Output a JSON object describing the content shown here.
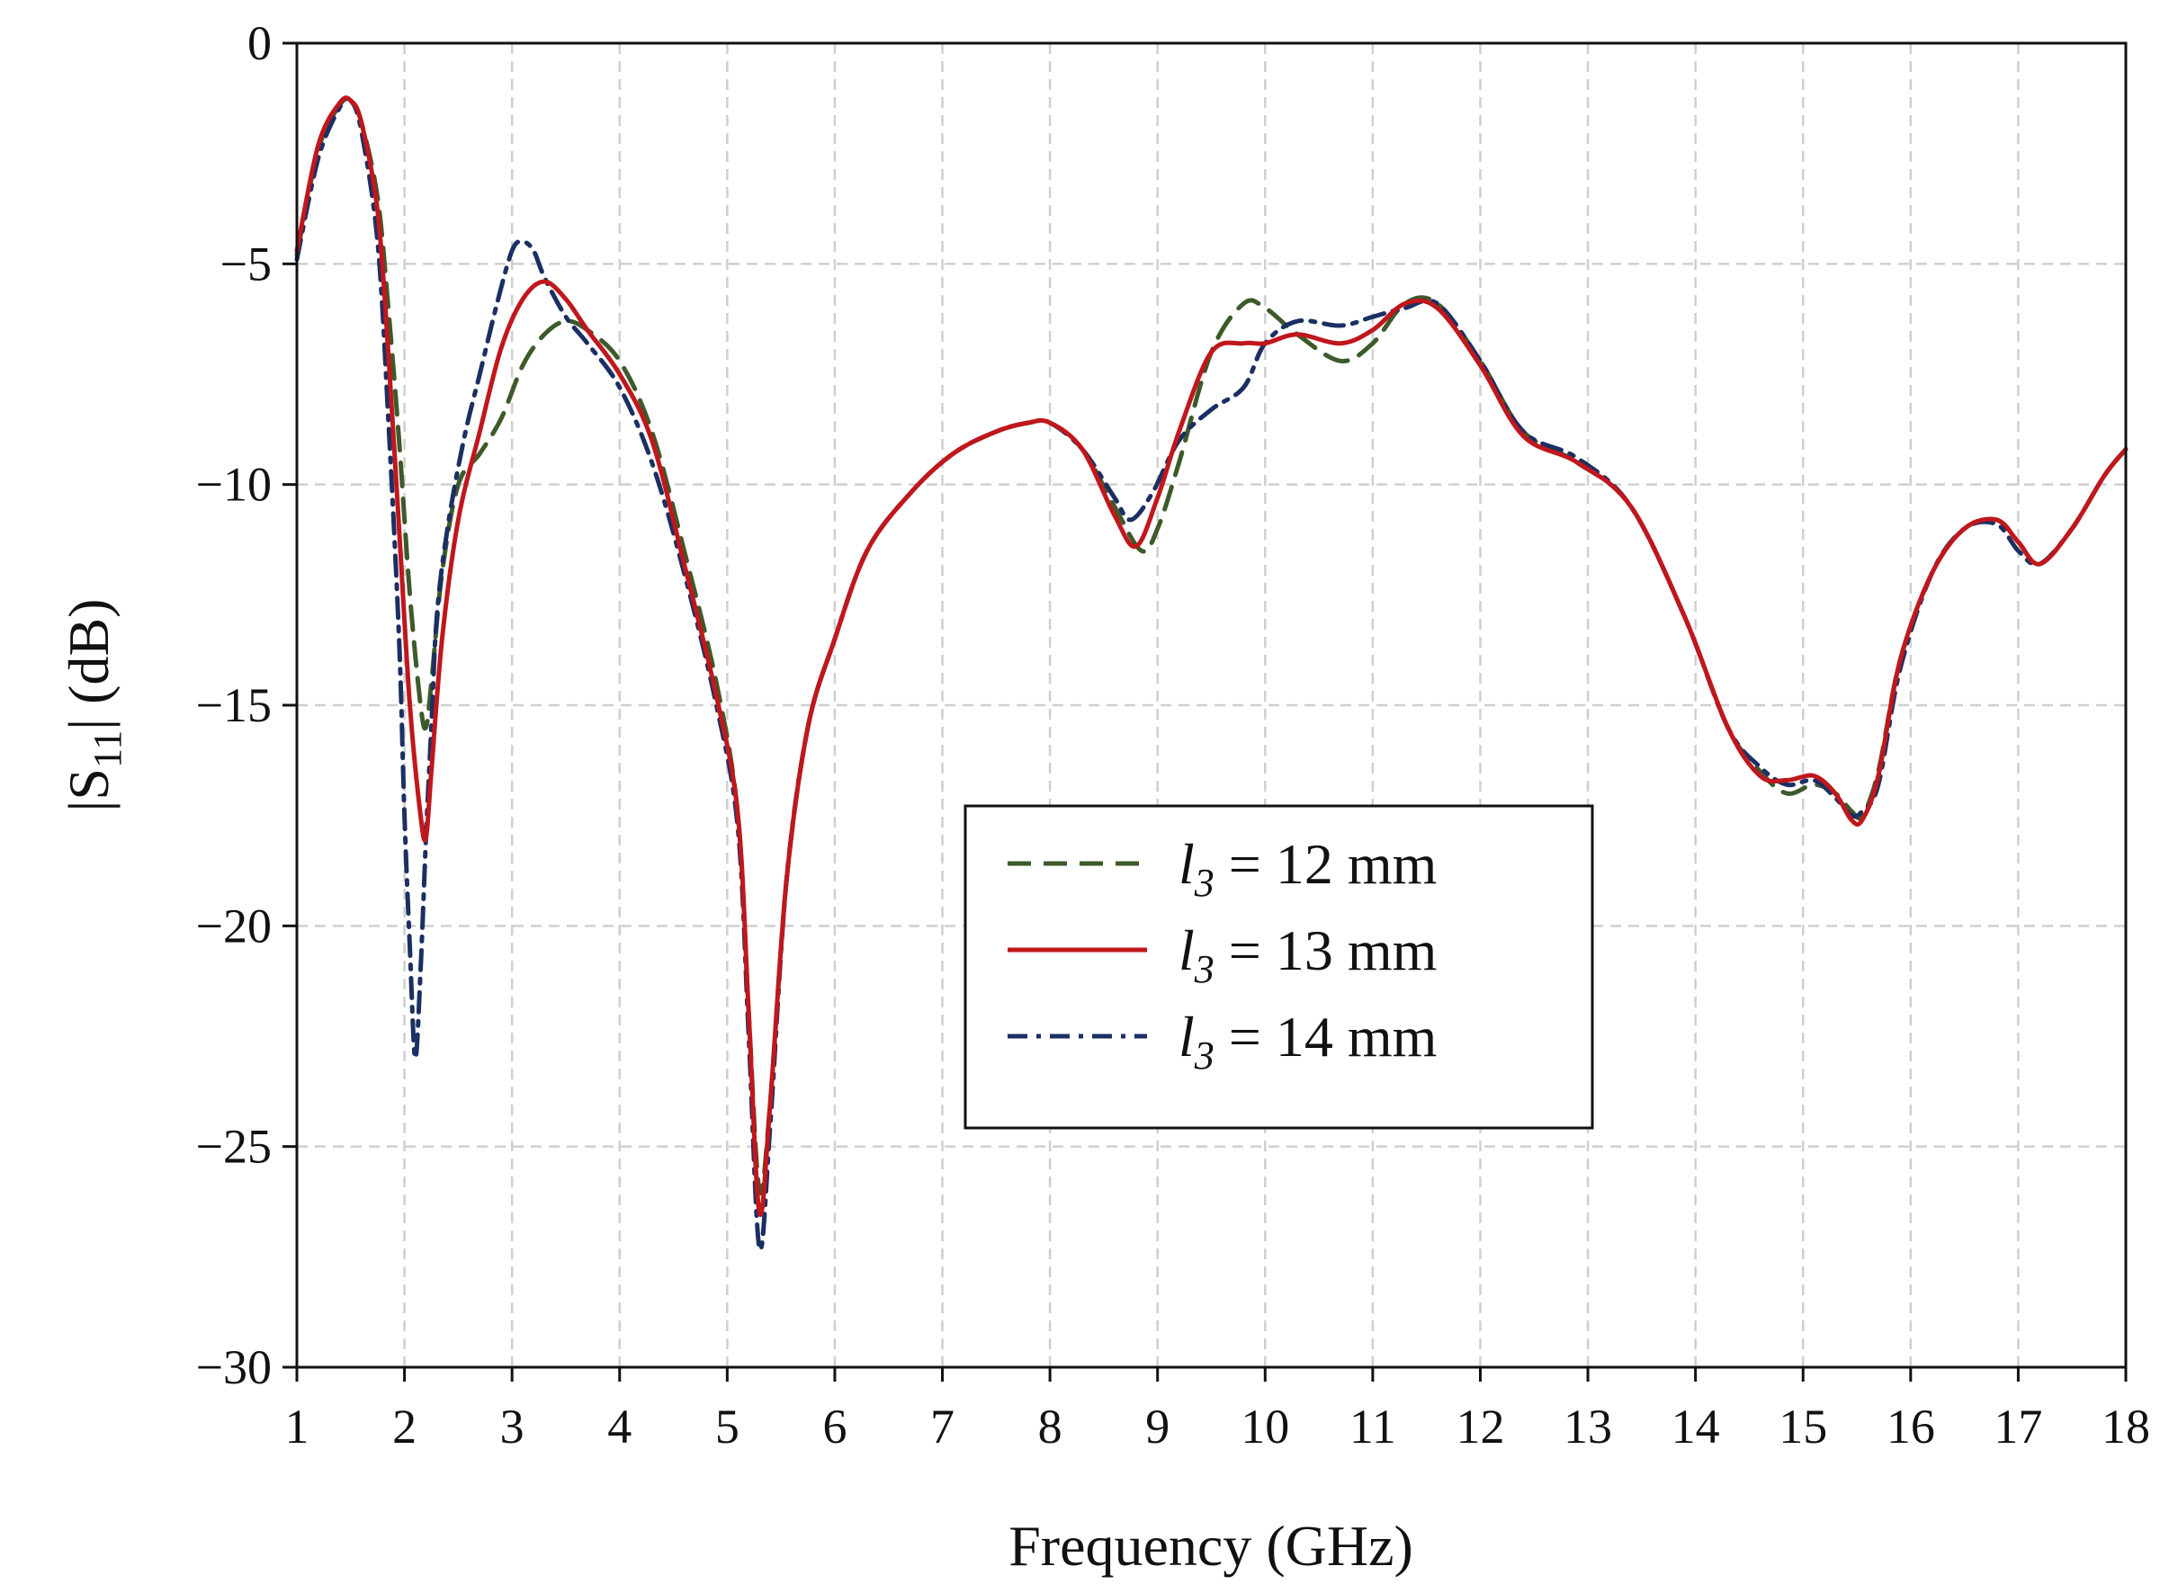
{
  "chart_data": {
    "type": "line",
    "xlabel": "Frequency (GHz)",
    "ylabel": {
      "prefix": "|S",
      "sub": "11",
      "suffix": "| (dB)"
    },
    "xlim": [
      1,
      18
    ],
    "ylim": [
      -30,
      0
    ],
    "xticks": [
      "1",
      "2",
      "3",
      "4",
      "5",
      "6",
      "7",
      "8",
      "9",
      "10",
      "11",
      "12",
      "13",
      "14",
      "15",
      "16",
      "17",
      "18"
    ],
    "yticks": [
      "0",
      "−5",
      "−10",
      "−15",
      "−20",
      "−25",
      "−30"
    ],
    "grid": true,
    "legend_position": "center",
    "series": [
      {
        "name": {
          "symbol": "l",
          "sub": "3",
          "rest": " = 12 mm"
        },
        "color": "#3d5a2a",
        "dash": "dashed",
        "x": [
          1.0,
          1.2,
          1.4,
          1.5,
          1.6,
          1.75,
          1.85,
          1.95,
          2.05,
          2.15,
          2.2,
          2.25,
          2.35,
          2.5,
          2.7,
          2.9,
          3.1,
          3.3,
          3.5,
          3.7,
          4.0,
          4.3,
          4.6,
          4.9,
          5.1,
          5.2,
          5.3,
          5.4,
          5.55,
          5.75,
          6.0,
          6.3,
          6.7,
          7.1,
          7.5,
          7.8,
          8.0,
          8.3,
          8.6,
          8.85,
          9.0,
          9.2,
          9.5,
          9.8,
          10.0,
          10.3,
          10.7,
          11.0,
          11.3,
          11.6,
          12.0,
          12.4,
          12.9,
          13.4,
          13.9,
          14.3,
          14.6,
          14.85,
          15.1,
          15.3,
          15.45,
          15.55,
          15.7,
          15.9,
          16.2,
          16.5,
          16.8,
          17.0,
          17.2,
          17.5,
          17.8,
          18.0
        ],
        "y": [
          -4.8,
          -2.4,
          -1.4,
          -1.3,
          -1.8,
          -3.5,
          -6.0,
          -9.0,
          -12.5,
          -15.0,
          -15.5,
          -14.5,
          -12.0,
          -10.0,
          -9.3,
          -8.5,
          -7.3,
          -6.6,
          -6.3,
          -6.5,
          -7.2,
          -8.8,
          -11.5,
          -14.5,
          -17.5,
          -22.0,
          -26.0,
          -24.0,
          -19.0,
          -15.5,
          -13.5,
          -11.5,
          -10.2,
          -9.3,
          -8.8,
          -8.6,
          -8.6,
          -9.2,
          -10.5,
          -11.5,
          -11.0,
          -9.5,
          -7.0,
          -5.9,
          -6.0,
          -6.6,
          -7.2,
          -6.8,
          -5.9,
          -5.9,
          -7.2,
          -8.8,
          -9.5,
          -10.5,
          -13.0,
          -15.5,
          -16.5,
          -17.0,
          -16.8,
          -17.0,
          -17.4,
          -17.5,
          -16.5,
          -14.0,
          -12.0,
          -11.0,
          -10.8,
          -11.3,
          -11.8,
          -11.0,
          -9.8,
          -9.2
        ]
      },
      {
        "name": {
          "symbol": "l",
          "sub": "3",
          "rest": " = 13 mm"
        },
        "color": "#c0171c",
        "dash": "solid",
        "x": [
          1.0,
          1.2,
          1.4,
          1.5,
          1.6,
          1.75,
          1.85,
          1.95,
          2.05,
          2.15,
          2.2,
          2.25,
          2.35,
          2.5,
          2.7,
          2.9,
          3.1,
          3.3,
          3.5,
          3.7,
          4.0,
          4.3,
          4.6,
          4.9,
          5.1,
          5.2,
          5.3,
          5.4,
          5.55,
          5.75,
          6.0,
          6.3,
          6.7,
          7.1,
          7.5,
          7.8,
          8.0,
          8.3,
          8.6,
          8.8,
          9.0,
          9.2,
          9.5,
          9.8,
          10.0,
          10.3,
          10.7,
          11.0,
          11.3,
          11.6,
          12.0,
          12.4,
          12.9,
          13.4,
          13.9,
          14.3,
          14.6,
          14.85,
          15.1,
          15.3,
          15.45,
          15.55,
          15.7,
          15.9,
          16.2,
          16.5,
          16.8,
          17.0,
          17.2,
          17.5,
          17.8,
          18.0
        ],
        "y": [
          -4.7,
          -2.3,
          -1.35,
          -1.3,
          -1.8,
          -3.8,
          -7.0,
          -11.0,
          -15.0,
          -17.5,
          -18.0,
          -16.5,
          -13.5,
          -10.8,
          -8.8,
          -6.9,
          -5.8,
          -5.4,
          -5.8,
          -6.5,
          -7.5,
          -9.0,
          -11.8,
          -14.8,
          -17.5,
          -22.0,
          -26.5,
          -24.0,
          -19.0,
          -15.5,
          -13.5,
          -11.5,
          -10.2,
          -9.3,
          -8.8,
          -8.6,
          -8.6,
          -9.2,
          -10.7,
          -11.4,
          -10.3,
          -8.8,
          -7.0,
          -6.8,
          -6.8,
          -6.6,
          -6.8,
          -6.5,
          -5.9,
          -6.0,
          -7.3,
          -8.9,
          -9.5,
          -10.5,
          -13.0,
          -15.5,
          -16.6,
          -16.7,
          -16.6,
          -17.0,
          -17.6,
          -17.6,
          -16.6,
          -14.0,
          -12.0,
          -11.0,
          -10.8,
          -11.3,
          -11.8,
          -11.0,
          -9.8,
          -9.2
        ]
      },
      {
        "name": {
          "symbol": "l",
          "sub": "3",
          "rest": " = 14 mm"
        },
        "color": "#1c2f63",
        "dash": "dashdot",
        "x": [
          1.0,
          1.2,
          1.4,
          1.5,
          1.6,
          1.75,
          1.85,
          1.95,
          2.0,
          2.05,
          2.1,
          2.15,
          2.2,
          2.25,
          2.3,
          2.4,
          2.55,
          2.7,
          2.85,
          3.0,
          3.1,
          3.2,
          3.3,
          3.5,
          3.7,
          4.0,
          4.3,
          4.6,
          4.9,
          5.1,
          5.2,
          5.3,
          5.4,
          5.55,
          5.75,
          6.0,
          6.3,
          6.7,
          7.1,
          7.5,
          7.8,
          8.0,
          8.3,
          8.6,
          8.75,
          8.95,
          9.2,
          9.5,
          9.8,
          10.0,
          10.3,
          10.7,
          11.0,
          11.3,
          11.6,
          12.0,
          12.4,
          12.9,
          13.4,
          13.9,
          14.3,
          14.6,
          14.85,
          15.1,
          15.3,
          15.45,
          15.55,
          15.7,
          15.9,
          16.2,
          16.5,
          16.8,
          17.0,
          17.2,
          17.5,
          17.8,
          18.0
        ],
        "y": [
          -4.9,
          -2.6,
          -1.45,
          -1.3,
          -2.0,
          -4.5,
          -8.5,
          -13.5,
          -17.5,
          -20.5,
          -23.0,
          -21.0,
          -18.0,
          -15.5,
          -13.0,
          -11.0,
          -9.0,
          -7.5,
          -6.0,
          -4.7,
          -4.5,
          -4.7,
          -5.3,
          -6.2,
          -6.8,
          -7.8,
          -9.5,
          -12.0,
          -15.0,
          -17.8,
          -22.5,
          -27.3,
          -24.5,
          -19.0,
          -15.5,
          -13.5,
          -11.5,
          -10.2,
          -9.3,
          -8.8,
          -8.6,
          -8.6,
          -9.2,
          -10.3,
          -10.8,
          -10.2,
          -9.0,
          -8.3,
          -7.8,
          -6.8,
          -6.3,
          -6.4,
          -6.2,
          -6.0,
          -5.9,
          -7.2,
          -8.8,
          -9.4,
          -10.5,
          -13.0,
          -15.5,
          -16.4,
          -16.8,
          -16.7,
          -17.1,
          -17.5,
          -17.4,
          -16.8,
          -14.2,
          -12.0,
          -11.0,
          -10.9,
          -11.5,
          -11.8,
          -11.0,
          -9.8,
          -9.2
        ]
      }
    ]
  }
}
